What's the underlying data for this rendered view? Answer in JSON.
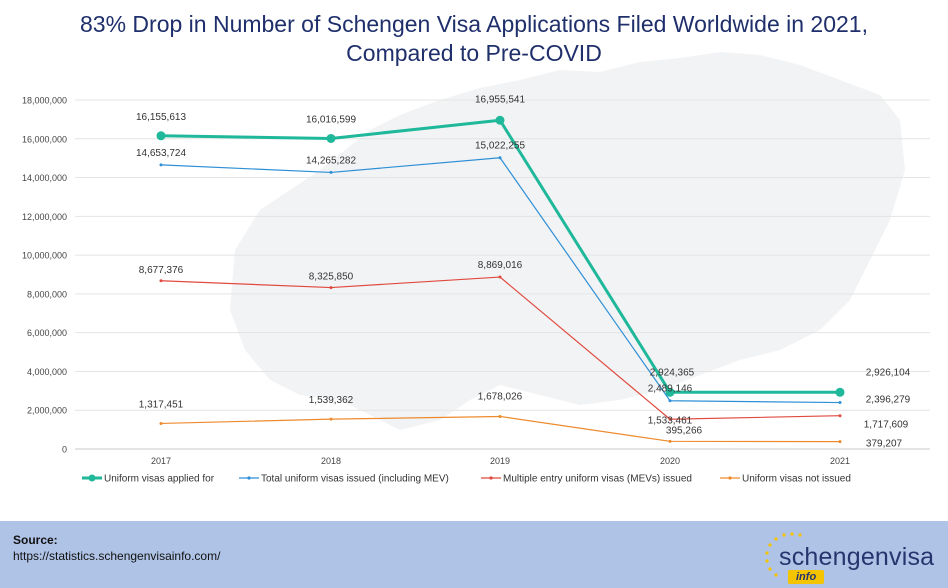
{
  "title_line1": "83% Drop in Number of Schengen Visa Applications Filed Worldwide in 2021,",
  "title_line2": "Compared to Pre-COVID",
  "footer": {
    "source_label": "Source:",
    "source_url": "https://statistics.schengenvisainfo.com/"
  },
  "logo": {
    "main": "schengenvisa",
    "sub": "info"
  },
  "chart_data": {
    "type": "line",
    "x": [
      "2017",
      "2018",
      "2019",
      "2020",
      "2021"
    ],
    "ylim": [
      0,
      18000000
    ],
    "yticks": [
      0,
      2000000,
      4000000,
      6000000,
      8000000,
      10000000,
      12000000,
      14000000,
      16000000,
      18000000
    ],
    "ytick_labels": [
      "0",
      "2,000,000",
      "4,000,000",
      "6,000,000",
      "8,000,000",
      "10,000,000",
      "12,000,000",
      "14,000,000",
      "16,000,000",
      "18,000,000"
    ],
    "legend_position": "bottom",
    "series": [
      {
        "name": "Uniform visas applied for",
        "color": "#1fb89a",
        "values": [
          16155613,
          16016599,
          16955541,
          2924365,
          2926104
        ],
        "labels": [
          "16,155,613",
          "16,016,599",
          "16,955,541",
          "2,924,365",
          "2,926,104"
        ]
      },
      {
        "name": "Total  uniform visas issued (including MEV)",
        "color": "#2e8fd6",
        "values": [
          14653724,
          14265282,
          15022255,
          2489146,
          2396279
        ],
        "labels": [
          "14,653,724",
          "14,265,282",
          "15,022,255",
          "2,489,146",
          "2,396,279"
        ]
      },
      {
        "name": "Multiple entry uniform visas (MEVs) issued",
        "color": "#e04a3f",
        "values": [
          8677376,
          8325850,
          8869016,
          1533461,
          1717609
        ],
        "labels": [
          "8,677,376",
          "8,325,850",
          "8,869,016",
          "1,533,461",
          "1,717,609"
        ]
      },
      {
        "name": "Uniform visas not issued",
        "color": "#ee8a2c",
        "values": [
          1317451,
          1539362,
          1678026,
          395266,
          379207
        ],
        "labels": [
          "1,317,451",
          "1,539,362",
          "1,678,026",
          "395,266",
          "379,207"
        ]
      }
    ]
  }
}
